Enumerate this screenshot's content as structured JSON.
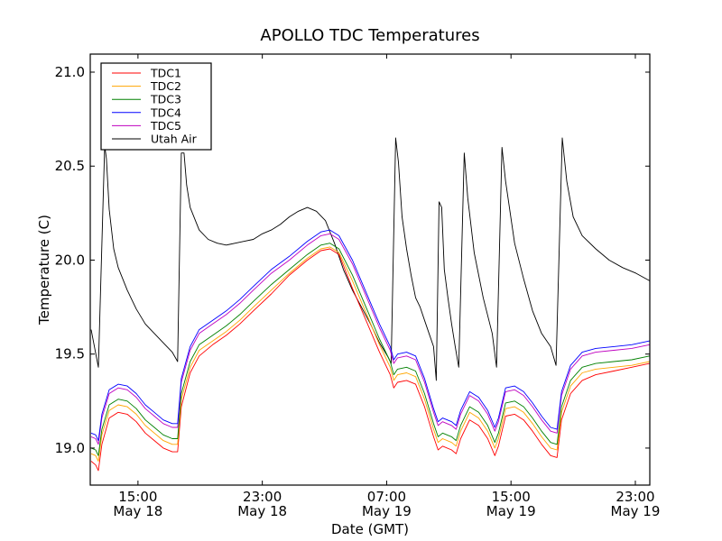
{
  "chart_data": {
    "type": "line",
    "title": "APOLLO TDC Temperatures",
    "xlabel": "Date (GMT)",
    "ylabel": "Temperature (C)",
    "x_units": "hours since 00:00 May 18 (GMT)",
    "xlim": [
      11.93,
      47.93
    ],
    "ylim": [
      18.803,
      21.096
    ],
    "grid": false,
    "legend_position": "top-left",
    "x_ticks": [
      {
        "value": 15,
        "label_time": "15:00",
        "label_date": "May 18"
      },
      {
        "value": 23,
        "label_time": "23:00",
        "label_date": "May 18"
      },
      {
        "value": 31,
        "label_time": "07:00",
        "label_date": "May 19"
      },
      {
        "value": 39,
        "label_time": "15:00",
        "label_date": "May 19"
      },
      {
        "value": 47,
        "label_time": "23:00",
        "label_date": "May 19"
      }
    ],
    "y_ticks": [
      {
        "value": 19.0,
        "label": "19.0"
      },
      {
        "value": 19.5,
        "label": "19.5"
      },
      {
        "value": 20.0,
        "label": "20.0"
      },
      {
        "value": 20.5,
        "label": "20.5"
      },
      {
        "value": 21.0,
        "label": "21.0"
      }
    ],
    "tdc_x": [
      11.99,
      12.28,
      12.45,
      12.68,
      13.15,
      13.73,
      14.31,
      14.89,
      15.47,
      16.05,
      16.63,
      17.21,
      17.55,
      17.79,
      18.36,
      18.94,
      19.81,
      20.68,
      21.55,
      22.42,
      23.58,
      24.74,
      25.9,
      26.77,
      27.35,
      27.93,
      28.8,
      29.67,
      30.54,
      31.23,
      31.46,
      31.7,
      32.28,
      32.86,
      33.44,
      34.02,
      34.31,
      34.6,
      35.18,
      35.47,
      35.76,
      36.34,
      36.92,
      37.5,
      37.96,
      38.19,
      38.65,
      39.23,
      39.81,
      40.39,
      40.97,
      41.55,
      41.96,
      42.25,
      42.83,
      43.58,
      44.45,
      45.61,
      46.77,
      47.92
    ],
    "series": [
      {
        "name": "TDC1",
        "color": "#ff0000",
        "values": [
          18.93,
          18.91,
          18.88,
          19.02,
          19.16,
          19.19,
          19.18,
          19.14,
          19.08,
          19.04,
          19.0,
          18.98,
          18.98,
          19.22,
          19.4,
          19.49,
          19.55,
          19.6,
          19.66,
          19.73,
          19.82,
          19.92,
          20.0,
          20.05,
          20.06,
          20.03,
          19.85,
          19.68,
          19.51,
          19.39,
          19.32,
          19.35,
          19.36,
          19.34,
          19.22,
          19.06,
          18.99,
          19.01,
          18.99,
          18.97,
          19.05,
          19.15,
          19.12,
          19.05,
          18.96,
          19.01,
          19.17,
          19.18,
          19.15,
          19.09,
          19.02,
          18.96,
          18.95,
          19.15,
          19.29,
          19.36,
          19.39,
          19.41,
          19.43,
          19.45
        ]
      },
      {
        "name": "TDC2",
        "color": "#ffa500",
        "values": [
          18.97,
          18.96,
          18.93,
          19.07,
          19.2,
          19.23,
          19.22,
          19.18,
          19.12,
          19.08,
          19.04,
          19.02,
          19.02,
          19.26,
          19.43,
          19.52,
          19.57,
          19.62,
          19.68,
          19.75,
          19.84,
          19.93,
          20.01,
          20.06,
          20.07,
          20.04,
          19.89,
          19.72,
          19.55,
          19.43,
          19.36,
          19.39,
          19.4,
          19.38,
          19.26,
          19.1,
          19.03,
          19.05,
          19.03,
          19.01,
          19.09,
          19.19,
          19.16,
          19.09,
          19.0,
          19.05,
          19.21,
          19.22,
          19.19,
          19.13,
          19.06,
          19.0,
          18.99,
          19.19,
          19.33,
          19.4,
          19.42,
          19.43,
          19.44,
          19.46
        ]
      },
      {
        "name": "TDC3",
        "color": "#008000",
        "values": [
          19.0,
          18.99,
          18.96,
          19.1,
          19.23,
          19.26,
          19.25,
          19.21,
          19.15,
          19.11,
          19.07,
          19.05,
          19.05,
          19.29,
          19.46,
          19.55,
          19.6,
          19.65,
          19.71,
          19.78,
          19.87,
          19.95,
          20.03,
          20.08,
          20.09,
          20.06,
          19.92,
          19.75,
          19.58,
          19.46,
          19.39,
          19.42,
          19.43,
          19.41,
          19.29,
          19.13,
          19.06,
          19.08,
          19.06,
          19.04,
          19.12,
          19.22,
          19.19,
          19.12,
          19.03,
          19.08,
          19.24,
          19.25,
          19.22,
          19.16,
          19.09,
          19.03,
          19.02,
          19.22,
          19.36,
          19.43,
          19.45,
          19.46,
          19.47,
          19.49
        ]
      },
      {
        "name": "TDC4",
        "color": "#0000ff",
        "values": [
          19.08,
          19.07,
          19.04,
          19.18,
          19.31,
          19.34,
          19.33,
          19.29,
          19.23,
          19.19,
          19.15,
          19.13,
          19.13,
          19.37,
          19.54,
          19.63,
          19.68,
          19.73,
          19.79,
          19.86,
          19.95,
          20.02,
          20.1,
          20.15,
          20.16,
          20.13,
          20.0,
          19.83,
          19.66,
          19.54,
          19.47,
          19.5,
          19.51,
          19.49,
          19.37,
          19.21,
          19.14,
          19.16,
          19.14,
          19.12,
          19.2,
          19.3,
          19.27,
          19.2,
          19.11,
          19.16,
          19.32,
          19.33,
          19.3,
          19.24,
          19.17,
          19.11,
          19.1,
          19.3,
          19.44,
          19.51,
          19.53,
          19.54,
          19.55,
          19.57
        ]
      },
      {
        "name": "TDC5",
        "color": "#bf00bf",
        "values": [
          19.06,
          19.05,
          19.02,
          19.16,
          19.29,
          19.32,
          19.31,
          19.27,
          19.21,
          19.17,
          19.13,
          19.11,
          19.11,
          19.35,
          19.52,
          19.61,
          19.66,
          19.71,
          19.77,
          19.84,
          19.93,
          20.0,
          20.08,
          20.13,
          20.14,
          20.11,
          19.98,
          19.81,
          19.64,
          19.52,
          19.45,
          19.48,
          19.49,
          19.47,
          19.35,
          19.19,
          19.12,
          19.14,
          19.12,
          19.1,
          19.18,
          19.28,
          19.25,
          19.18,
          19.09,
          19.14,
          19.3,
          19.31,
          19.28,
          19.22,
          19.15,
          19.09,
          19.08,
          19.28,
          19.42,
          19.49,
          19.51,
          19.52,
          19.53,
          19.55
        ]
      },
      {
        "name": "Utah Air",
        "color": "#000000",
        "x": [
          11.99,
          12.45,
          12.86,
          12.97,
          13.15,
          13.44,
          13.73,
          14.31,
          14.89,
          15.47,
          16.05,
          16.63,
          17.21,
          17.55,
          17.79,
          17.96,
          18.13,
          18.36,
          18.94,
          19.52,
          20.1,
          20.68,
          21.26,
          21.84,
          22.42,
          23.0,
          23.58,
          24.16,
          24.74,
          25.32,
          25.9,
          26.48,
          27.06,
          27.64,
          28.22,
          28.8,
          29.38,
          29.96,
          30.54,
          31.12,
          31.29,
          31.58,
          31.76,
          31.99,
          32.28,
          32.57,
          32.86,
          33.15,
          33.44,
          33.73,
          34.02,
          34.19,
          34.37,
          34.54,
          34.71,
          34.94,
          35.18,
          35.41,
          35.64,
          35.99,
          36.22,
          36.63,
          37.21,
          37.79,
          38.07,
          38.42,
          38.65,
          39.23,
          39.81,
          40.39,
          40.97,
          41.55,
          41.9,
          42.3,
          42.59,
          43.0,
          43.58,
          44.45,
          45.32,
          46.18,
          47.05,
          47.92
        ],
        "values": [
          19.63,
          19.43,
          20.61,
          20.54,
          20.27,
          20.06,
          19.96,
          19.84,
          19.74,
          19.66,
          19.61,
          19.56,
          19.51,
          19.46,
          20.57,
          20.57,
          20.4,
          20.28,
          20.16,
          20.11,
          20.09,
          20.08,
          20.09,
          20.1,
          20.11,
          20.14,
          20.16,
          20.19,
          20.23,
          20.26,
          20.28,
          20.26,
          20.21,
          20.09,
          19.95,
          19.84,
          19.75,
          19.66,
          19.56,
          19.48,
          19.45,
          20.65,
          20.52,
          20.23,
          20.06,
          19.92,
          19.8,
          19.75,
          19.68,
          19.61,
          19.54,
          19.36,
          20.31,
          20.28,
          19.95,
          19.8,
          19.66,
          19.54,
          19.43,
          20.57,
          20.33,
          20.04,
          19.8,
          19.61,
          19.43,
          20.6,
          20.42,
          20.09,
          19.9,
          19.73,
          19.61,
          19.54,
          19.44,
          20.65,
          20.42,
          20.23,
          20.13,
          20.06,
          20.0,
          19.96,
          19.93,
          19.89
        ]
      }
    ]
  }
}
